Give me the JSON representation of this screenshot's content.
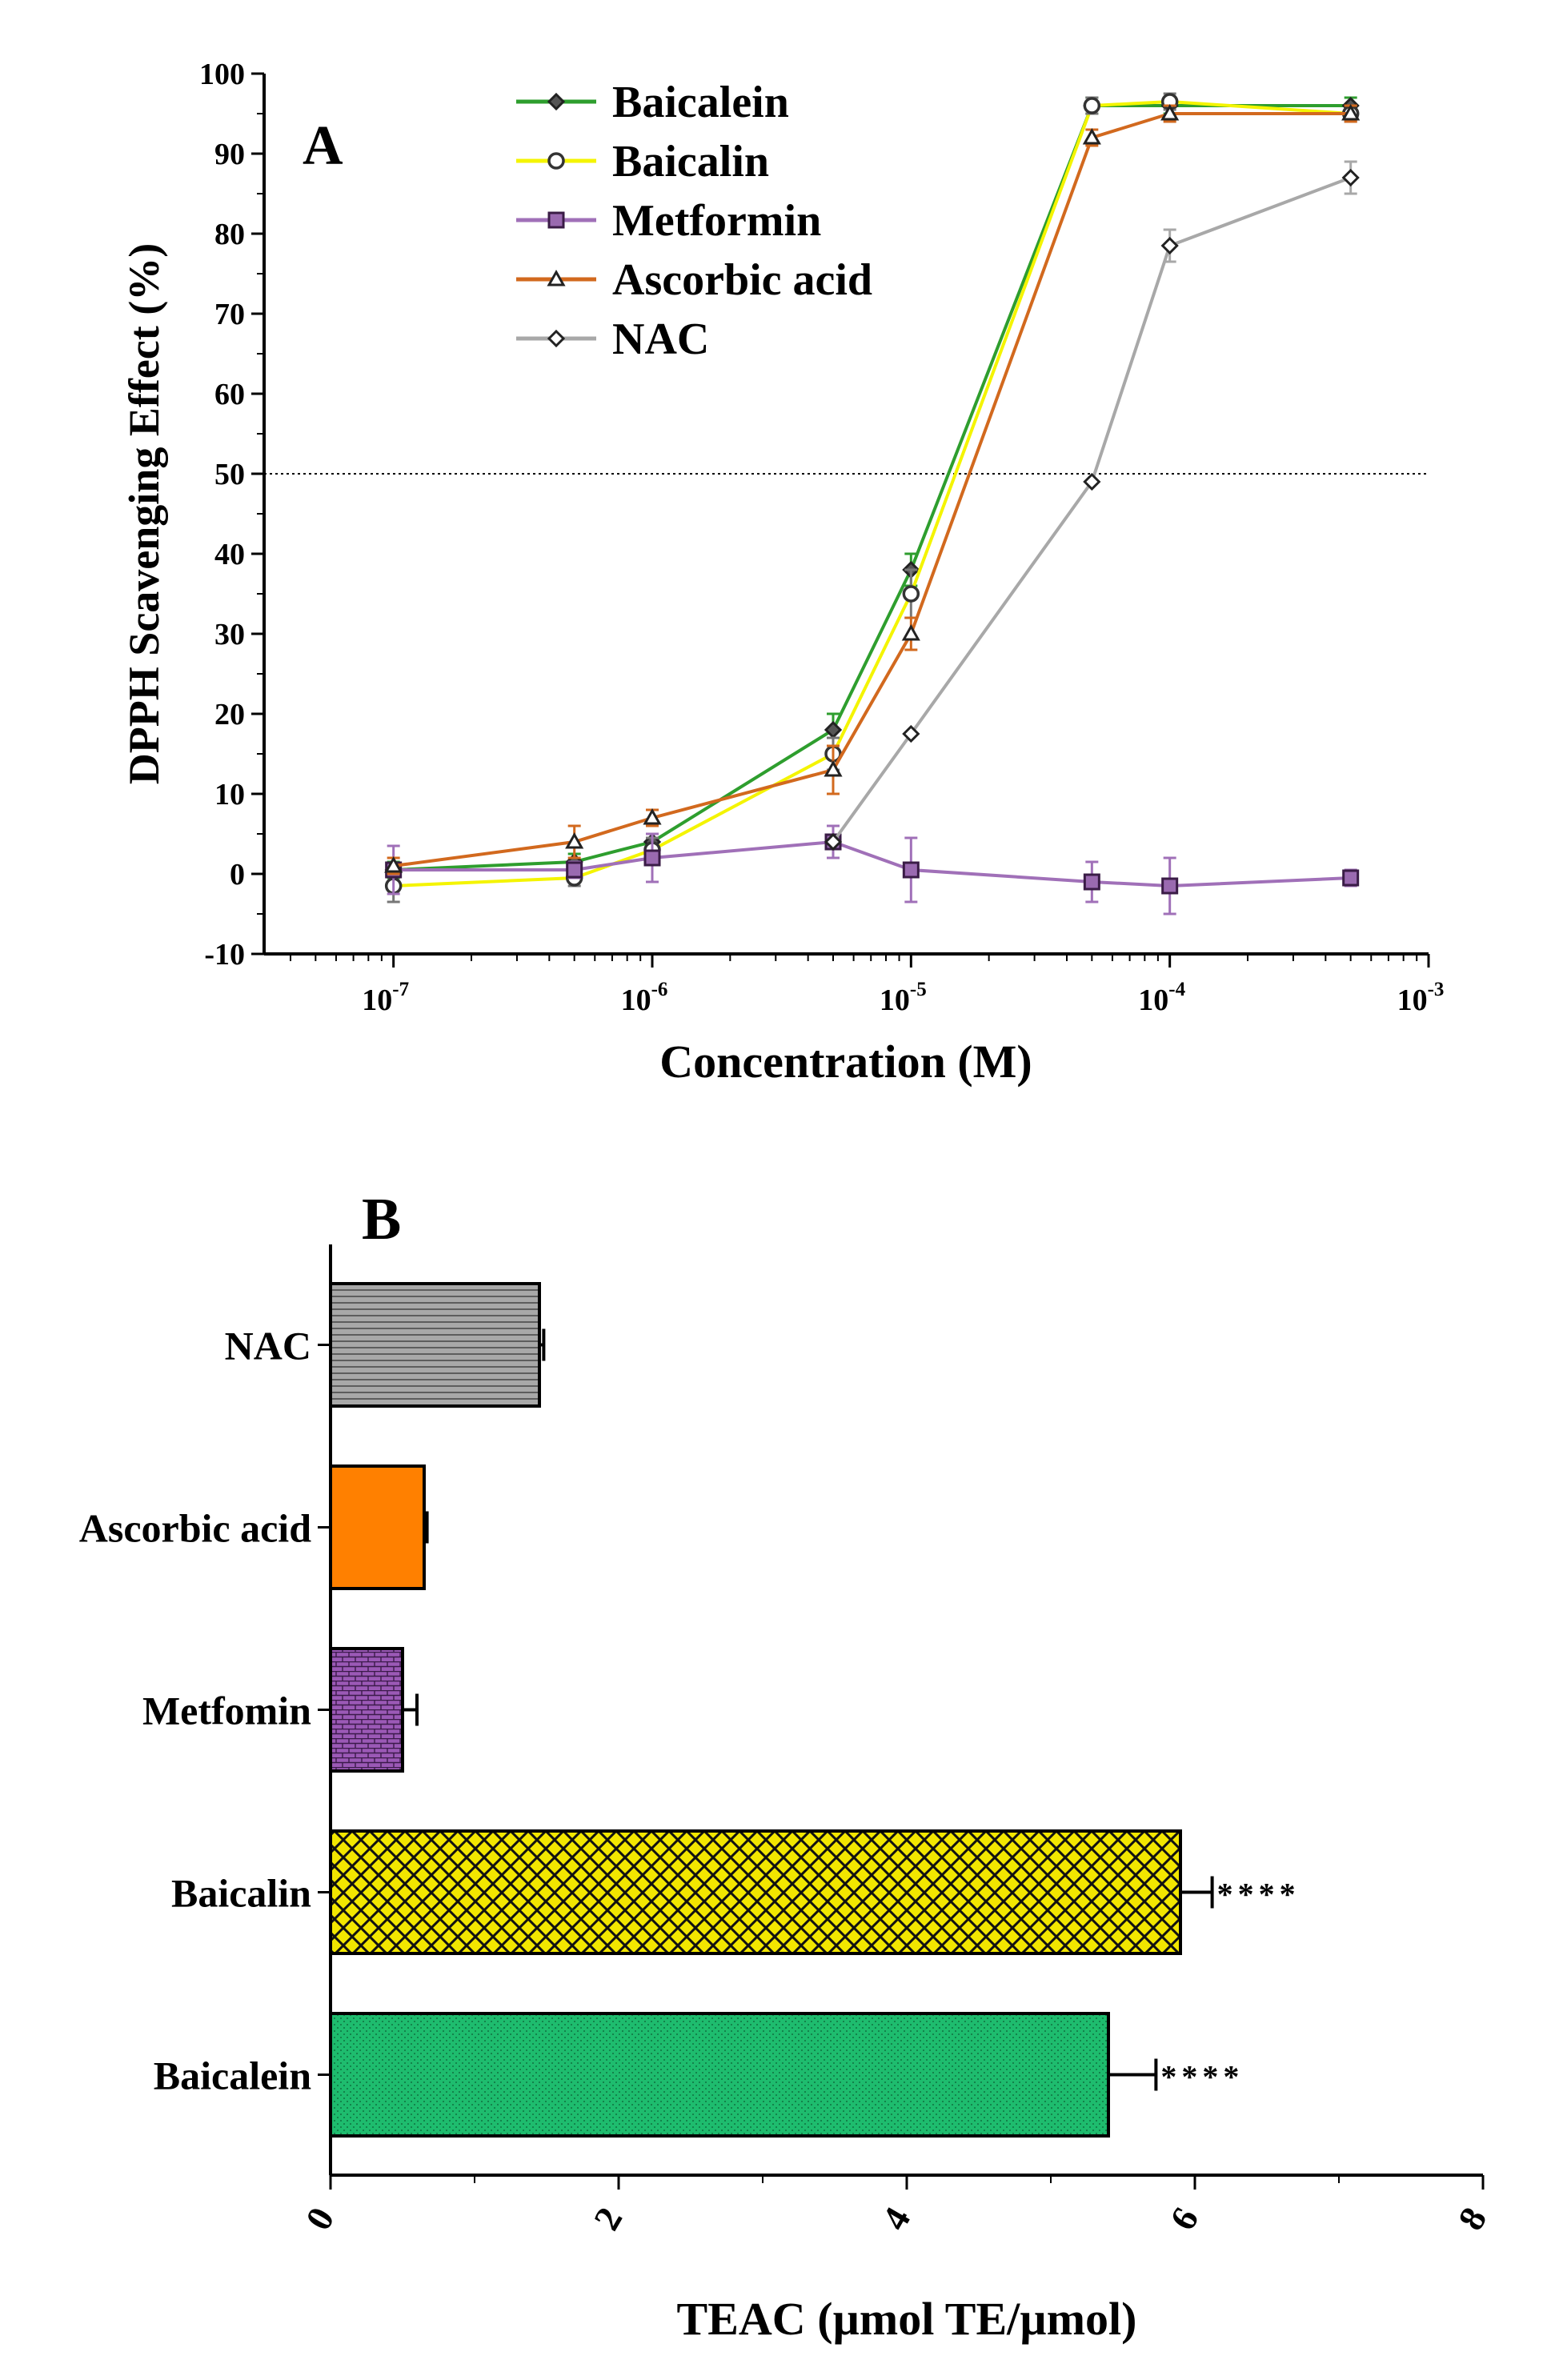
{
  "chart_data": [
    {
      "type": "line",
      "panel_label": "A",
      "xscale": "log",
      "xlabel": "Concentration (M)",
      "ylabel": "DPPH Scavenging Effect (%)",
      "ylim": [
        -10,
        100
      ],
      "yticks": [
        -10,
        0,
        10,
        20,
        30,
        40,
        50,
        60,
        70,
        80,
        90,
        100
      ],
      "xlim_exp": [
        -7.5,
        -3
      ],
      "xticks": [
        {
          "exp": -7,
          "base": "10",
          "sup": "-7"
        },
        {
          "exp": -6,
          "base": "10",
          "sup": "-6"
        },
        {
          "exp": -5,
          "base": "10",
          "sup": "-5"
        },
        {
          "exp": -4,
          "base": "10",
          "sup": "-4"
        },
        {
          "exp": -3,
          "base": "10",
          "sup": "-3"
        }
      ],
      "reference_line": 50,
      "legend_position": "top-center",
      "x_exp": [
        -7,
        -6.301,
        -6,
        -5.301,
        -5,
        -4.301,
        -4,
        -3.301
      ],
      "series": [
        {
          "name": "Baicalein",
          "color": "#2e9e2e",
          "marker": "diamond",
          "fill": "#555555",
          "values": [
            0.5,
            1.5,
            4,
            18,
            38,
            96,
            96,
            96
          ],
          "errors": [
            1,
            1,
            1,
            2,
            2,
            1,
            1,
            1
          ]
        },
        {
          "name": "Baicalin",
          "color": "#f4f400",
          "marker": "circle",
          "fill": "#ffffff",
          "values": [
            -1.5,
            -0.5,
            3,
            15,
            35,
            96,
            96.5,
            95
          ],
          "errors": [
            2,
            1,
            1.5,
            2,
            3,
            1,
            1,
            1
          ]
        },
        {
          "name": "Metformin",
          "color": "#a070b8",
          "marker": "square",
          "fill": "#9a6ab0",
          "values": [
            0.5,
            0.5,
            2,
            4,
            0.5,
            -1,
            -1.5,
            -0.5
          ],
          "errors": [
            3,
            1,
            3,
            2,
            4,
            2.5,
            3.5,
            1
          ]
        },
        {
          "name": "Ascorbic acid",
          "color": "#d2691e",
          "marker": "triangle",
          "fill": "#ffffff",
          "values": [
            1,
            4,
            7,
            13,
            30,
            92,
            95,
            95
          ],
          "errors": [
            1,
            2,
            1,
            3,
            2,
            1,
            1,
            1
          ]
        },
        {
          "name": "NAC",
          "color": "#a8a8a8",
          "marker": "diamond",
          "fill": "#ffffff",
          "values": [
            null,
            null,
            null,
            4,
            17.5,
            49,
            78.5,
            87
          ],
          "errors": [
            0,
            0,
            0,
            0,
            0,
            0,
            2,
            2
          ]
        }
      ]
    },
    {
      "type": "bar",
      "orientation": "horizontal",
      "panel_label": "B",
      "xlabel": "TEAC (µmol TE/µmol)",
      "xlim": [
        0,
        8
      ],
      "xticks": [
        0,
        2,
        4,
        6,
        8
      ],
      "categories": [
        "NAC",
        "Ascorbic acid",
        "Metfomin",
        "Baicalin",
        "Baicalein"
      ],
      "values": [
        1.45,
        0.65,
        0.5,
        5.9,
        5.4
      ],
      "errors": [
        0.03,
        0.02,
        0.1,
        0.22,
        0.33
      ],
      "significance": [
        "",
        "",
        "",
        "****",
        "****"
      ],
      "colors": [
        "#a8a8a8",
        "#ff8000",
        "#9b59b6",
        "#f2e600",
        "#1ebc6e"
      ]
    }
  ]
}
